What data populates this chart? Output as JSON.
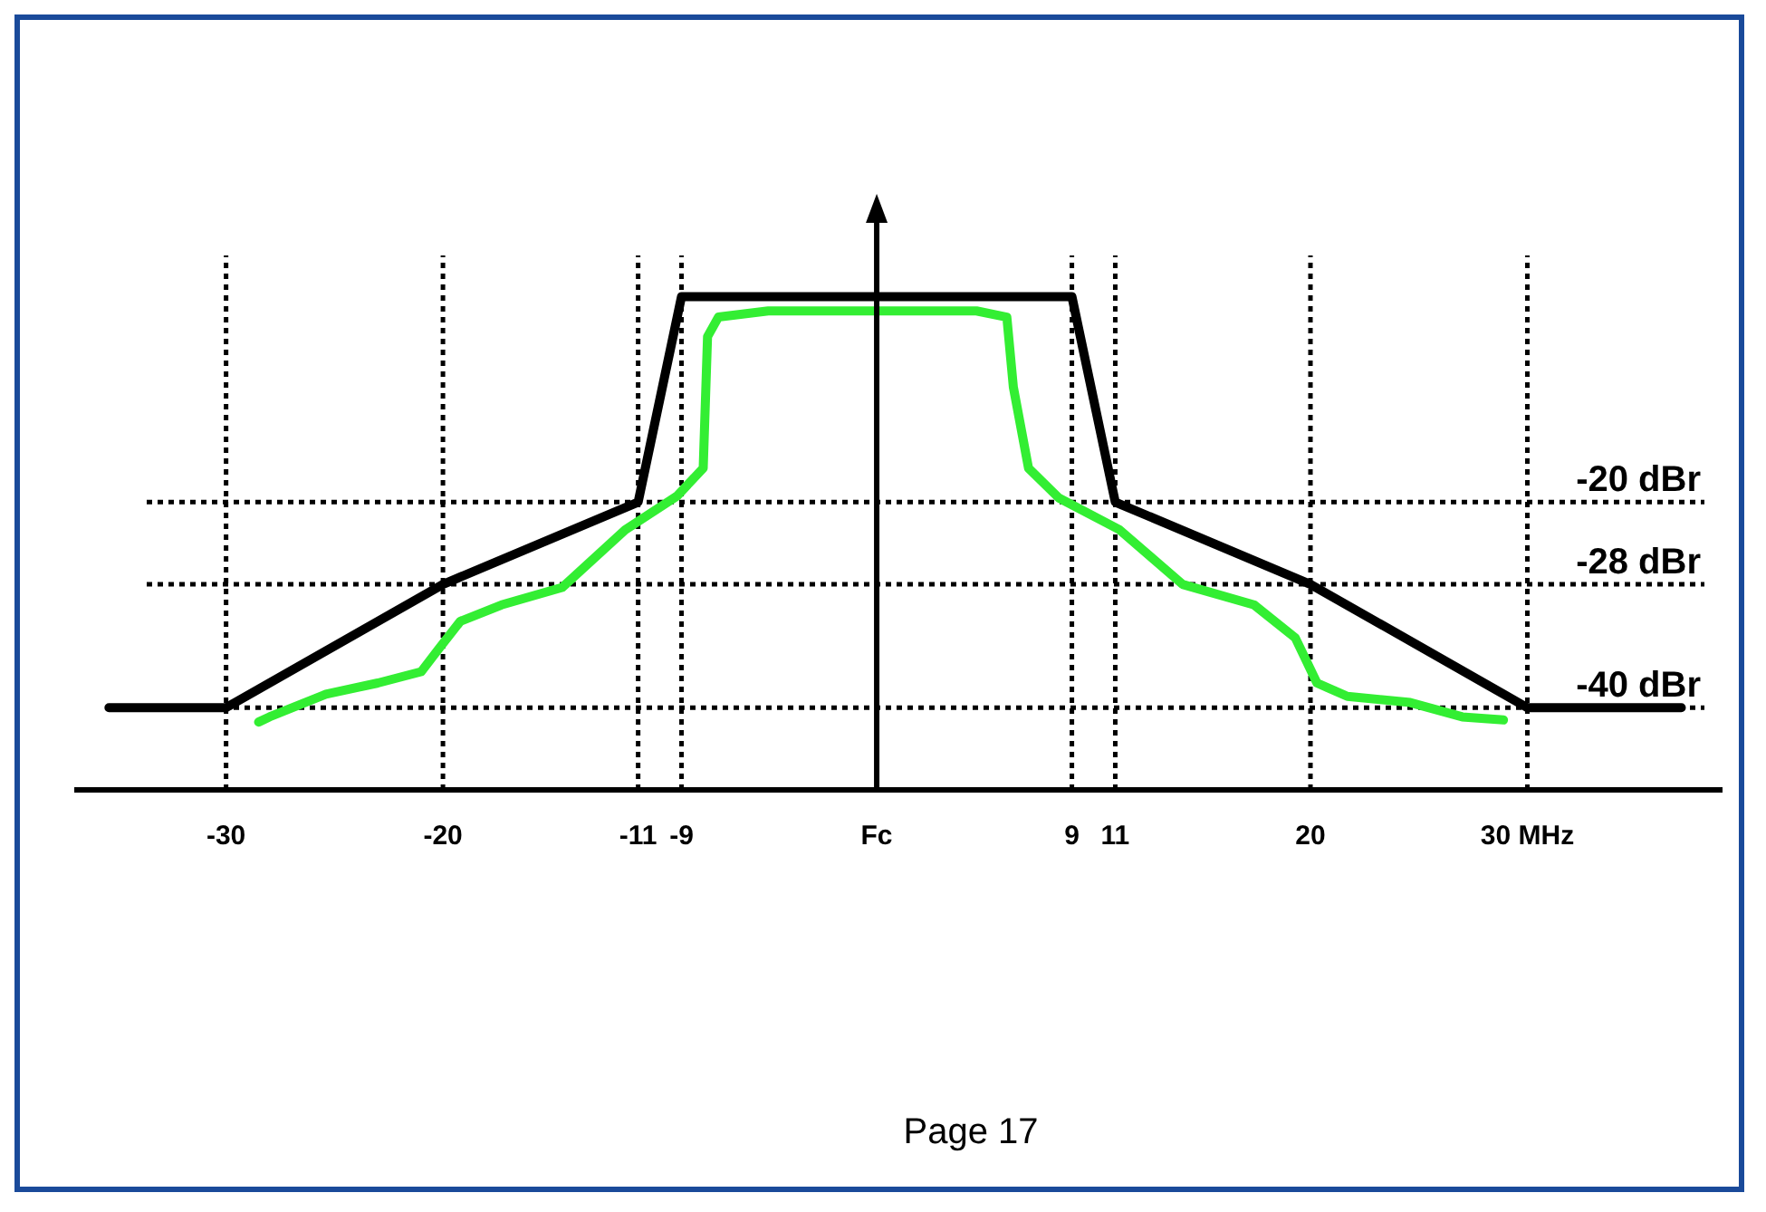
{
  "chart_data": {
    "type": "line",
    "xlim": [
      -37,
      39
    ],
    "xticks": [
      {
        "value": -30,
        "label": "-30"
      },
      {
        "value": -20,
        "label": "-20"
      },
      {
        "value": -11,
        "label": "-11"
      },
      {
        "value": -9,
        "label": "-9"
      },
      {
        "value": 0,
        "label": "Fc"
      },
      {
        "value": 9,
        "label": "9"
      },
      {
        "value": 11,
        "label": "11"
      },
      {
        "value": 20,
        "label": "20"
      },
      {
        "value": 30,
        "label": "30 MHz"
      }
    ],
    "ylim": [
      -48,
      4
    ],
    "tick_labels": "x",
    "series": [
      {
        "color": "#000000",
        "x": [
          -35.4,
          -30,
          -20,
          -11,
          -9,
          9,
          11,
          20,
          30,
          37.1
        ],
        "values": [
          -40,
          -40,
          -28,
          -20,
          0,
          0,
          -20,
          -28,
          -40,
          -40
        ]
      },
      {
        "color": "#33ee33",
        "x": [
          -28.5,
          -28.0,
          -25.4,
          -23.0,
          -21.0,
          -20.2,
          -19.2,
          -17.3,
          -14.5,
          -11.6,
          -9.2,
          -8.0,
          -7.8,
          -7.3,
          -5.0,
          0,
          4.6,
          6.0,
          6.3,
          7.0,
          8.4,
          11.2,
          14.1,
          17.4,
          19.3,
          20.3,
          21.7,
          24.6,
          27.0,
          28.9
        ],
        "values": [
          -41.4,
          -40.9,
          -38.7,
          -37.6,
          -36.5,
          -34.3,
          -31.6,
          -30.0,
          -28.3,
          -22.7,
          -19.4,
          -16.7,
          -3.9,
          -2.0,
          -1.4,
          -1.4,
          -1.4,
          -2.0,
          -8.8,
          -16.7,
          -19.6,
          -22.7,
          -28.0,
          -30.0,
          -33.2,
          -37.6,
          -38.9,
          -39.5,
          -40.9,
          -41.2
        ]
      }
    ],
    "ref_lines": [
      {
        "axis": "y",
        "value": -20,
        "label": "-20 dBr",
        "line_style": "dotted"
      },
      {
        "axis": "y",
        "value": -28,
        "label": "-28 dBr",
        "line_style": "dotted"
      },
      {
        "axis": "y",
        "value": -40,
        "label": "-40 dBr",
        "line_style": "dotted"
      },
      {
        "axis": "x",
        "value": -30,
        "label": null,
        "line_style": "dotted"
      },
      {
        "axis": "x",
        "value": -20,
        "label": null,
        "line_style": "dotted"
      },
      {
        "axis": "x",
        "value": -11,
        "label": null,
        "line_style": "dotted"
      },
      {
        "axis": "x",
        "value": -9,
        "label": null,
        "line_style": "dotted"
      },
      {
        "axis": "x",
        "value": 9,
        "label": null,
        "line_style": "dotted"
      },
      {
        "axis": "x",
        "value": 11,
        "label": null,
        "line_style": "dotted"
      },
      {
        "axis": "x",
        "value": 20,
        "label": null,
        "line_style": "dotted"
      },
      {
        "axis": "x",
        "value": 30,
        "label": null,
        "line_style": "dotted"
      }
    ],
    "annotations": [
      "Page 17"
    ]
  }
}
